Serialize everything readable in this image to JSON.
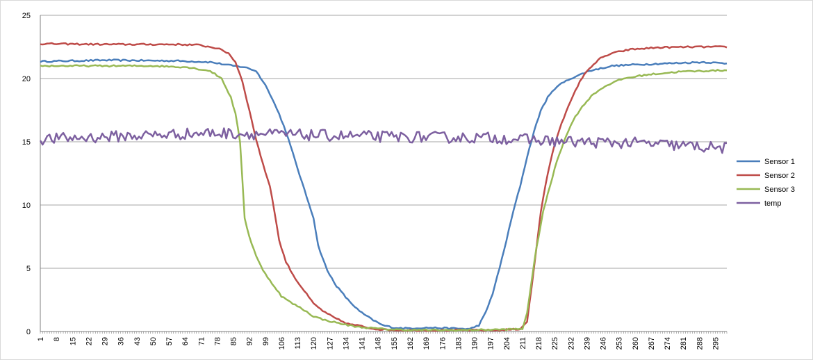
{
  "chart_data": {
    "type": "line",
    "title": "",
    "xlabel": "",
    "ylabel": "",
    "ylim": [
      0,
      25
    ],
    "yticks": [
      0,
      5,
      10,
      15,
      20,
      25
    ],
    "xlim": [
      1,
      300
    ],
    "xtick_start": 1,
    "xtick_step": 7,
    "xtick_end": 295,
    "grid": "horizontal",
    "legend_position": "right",
    "series": [
      {
        "name": "Sensor 1",
        "color": "#4A7EBB",
        "points": [
          [
            1,
            21.35
          ],
          [
            30,
            21.45
          ],
          [
            60,
            21.4
          ],
          [
            75,
            21.3
          ],
          [
            85,
            21.0
          ],
          [
            90,
            20.9
          ],
          [
            95,
            20.6
          ],
          [
            100,
            19.2
          ],
          [
            105,
            17.2
          ],
          [
            108,
            15.8
          ],
          [
            112,
            13.5
          ],
          [
            116,
            11.2
          ],
          [
            120,
            9.0
          ],
          [
            122,
            6.8
          ],
          [
            126,
            4.8
          ],
          [
            130,
            3.6
          ],
          [
            135,
            2.5
          ],
          [
            140,
            1.6
          ],
          [
            145,
            1.0
          ],
          [
            150,
            0.5
          ],
          [
            155,
            0.3
          ],
          [
            160,
            0.25
          ],
          [
            170,
            0.3
          ],
          [
            180,
            0.25
          ],
          [
            188,
            0.2
          ],
          [
            192,
            0.5
          ],
          [
            195,
            1.5
          ],
          [
            198,
            3.0
          ],
          [
            201,
            5.0
          ],
          [
            204,
            7.2
          ],
          [
            207,
            9.5
          ],
          [
            210,
            11.5
          ],
          [
            213,
            13.8
          ],
          [
            216,
            15.8
          ],
          [
            219,
            17.5
          ],
          [
            222,
            18.5
          ],
          [
            226,
            19.4
          ],
          [
            232,
            20.0
          ],
          [
            240,
            20.6
          ],
          [
            250,
            21.0
          ],
          [
            260,
            21.1
          ],
          [
            275,
            21.2
          ],
          [
            290,
            21.3
          ],
          [
            299,
            21.2
          ]
        ]
      },
      {
        "name": "Sensor 2",
        "color": "#BE4B48",
        "points": [
          [
            1,
            22.75
          ],
          [
            30,
            22.7
          ],
          [
            60,
            22.7
          ],
          [
            70,
            22.65
          ],
          [
            78,
            22.4
          ],
          [
            83,
            22.0
          ],
          [
            86,
            21.3
          ],
          [
            89,
            19.8
          ],
          [
            92,
            17.5
          ],
          [
            95,
            15.2
          ],
          [
            98,
            13.2
          ],
          [
            101,
            11.5
          ],
          [
            103,
            9.5
          ],
          [
            105,
            7.2
          ],
          [
            108,
            5.5
          ],
          [
            112,
            4.2
          ],
          [
            116,
            3.2
          ],
          [
            120,
            2.2
          ],
          [
            125,
            1.5
          ],
          [
            130,
            1.0
          ],
          [
            135,
            0.6
          ],
          [
            140,
            0.45
          ],
          [
            145,
            0.25
          ],
          [
            150,
            0.15
          ],
          [
            160,
            0.1
          ],
          [
            180,
            0.1
          ],
          [
            200,
            0.1
          ],
          [
            210,
            0.2
          ],
          [
            213,
            0.8
          ],
          [
            215,
            3.5
          ],
          [
            217,
            6.5
          ],
          [
            219,
            9.5
          ],
          [
            222,
            12.5
          ],
          [
            225,
            14.8
          ],
          [
            228,
            16.5
          ],
          [
            232,
            18.2
          ],
          [
            236,
            19.8
          ],
          [
            240,
            20.8
          ],
          [
            245,
            21.6
          ],
          [
            250,
            22.0
          ],
          [
            258,
            22.3
          ],
          [
            270,
            22.45
          ],
          [
            285,
            22.5
          ],
          [
            299,
            22.5
          ]
        ]
      },
      {
        "name": "Sensor 3",
        "color": "#98B954",
        "points": [
          [
            1,
            21.0
          ],
          [
            30,
            21.0
          ],
          [
            50,
            21.0
          ],
          [
            65,
            20.9
          ],
          [
            75,
            20.6
          ],
          [
            80,
            20.0
          ],
          [
            84,
            18.5
          ],
          [
            86,
            17.2
          ],
          [
            88,
            15.0
          ],
          [
            89,
            12.0
          ],
          [
            90,
            9.0
          ],
          [
            92,
            7.5
          ],
          [
            95,
            6.0
          ],
          [
            98,
            4.8
          ],
          [
            102,
            3.8
          ],
          [
            106,
            2.8
          ],
          [
            110,
            2.3
          ],
          [
            115,
            1.8
          ],
          [
            120,
            1.2
          ],
          [
            125,
            0.9
          ],
          [
            130,
            0.7
          ],
          [
            135,
            0.5
          ],
          [
            140,
            0.35
          ],
          [
            150,
            0.2
          ],
          [
            160,
            0.12
          ],
          [
            180,
            0.1
          ],
          [
            200,
            0.15
          ],
          [
            211,
            0.2
          ],
          [
            213,
            1.5
          ],
          [
            215,
            4.0
          ],
          [
            217,
            6.5
          ],
          [
            220,
            9.5
          ],
          [
            223,
            11.5
          ],
          [
            226,
            13.5
          ],
          [
            230,
            15.5
          ],
          [
            234,
            17.0
          ],
          [
            238,
            18.0
          ],
          [
            242,
            18.8
          ],
          [
            248,
            19.5
          ],
          [
            255,
            20.0
          ],
          [
            265,
            20.3
          ],
          [
            280,
            20.55
          ],
          [
            299,
            20.65
          ]
        ]
      },
      {
        "name": "temp",
        "color": "#7D60A0",
        "base": [
          [
            1,
            15.2
          ],
          [
            60,
            15.6
          ],
          [
            75,
            15.7
          ],
          [
            100,
            15.6
          ],
          [
            150,
            15.4
          ],
          [
            200,
            15.3
          ],
          [
            230,
            15.0
          ],
          [
            260,
            14.9
          ],
          [
            280,
            14.7
          ],
          [
            299,
            14.5
          ]
        ],
        "noise_amplitude": 0.45
      }
    ]
  }
}
